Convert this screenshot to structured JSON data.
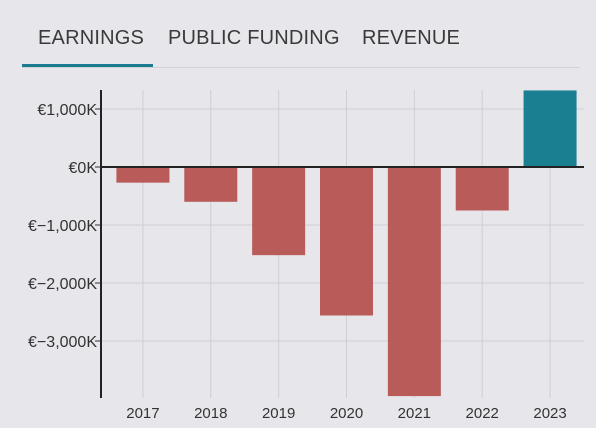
{
  "tabs": [
    {
      "label": "EARNINGS",
      "active": true
    },
    {
      "label": "PUBLIC FUNDING",
      "active": false
    },
    {
      "label": "REVENUE",
      "active": false
    }
  ],
  "colors": {
    "accent": "#1a7c8e",
    "positive": "#1a7f91",
    "negative": "#b85b59"
  },
  "chart_data": {
    "type": "bar",
    "title": "",
    "xlabel": "",
    "ylabel": "",
    "categories": [
      "2017",
      "2018",
      "2019",
      "2020",
      "2021",
      "2022",
      "2023"
    ],
    "values": [
      -270,
      -600,
      -1520,
      -2560,
      -3950,
      -750,
      1320
    ],
    "ylim": [
      -3950,
      1320
    ],
    "yticks": [
      1000,
      0,
      -1000,
      -2000,
      -3000
    ],
    "ytick_labels": [
      "€1,000K",
      "€0K",
      "€−1,000K",
      "€−2,000K",
      "€−3,000K"
    ],
    "grid": true,
    "legend": "none"
  }
}
